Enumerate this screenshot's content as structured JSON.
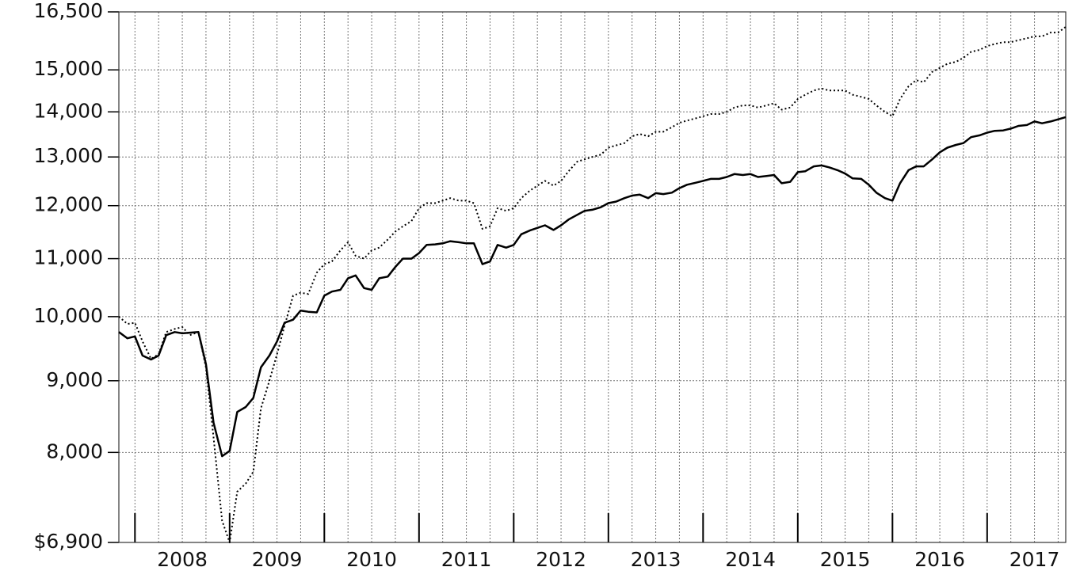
{
  "chart_data": {
    "type": "line",
    "log_y": true,
    "grid": true,
    "xlim": [
      2007.83,
      2017.83
    ],
    "xticks": [
      2008,
      2009,
      2010,
      2011,
      2012,
      2013,
      2014,
      2015,
      2016,
      2017
    ],
    "ylim": [
      6900,
      16500
    ],
    "yticks": [
      {
        "value": 6900,
        "label": "$6,900"
      },
      {
        "value": 8000,
        "label": "8,000"
      },
      {
        "value": 9000,
        "label": "9,000"
      },
      {
        "value": 10000,
        "label": "10,000"
      },
      {
        "value": 11000,
        "label": "11,000"
      },
      {
        "value": 12000,
        "label": "12,000"
      },
      {
        "value": 13000,
        "label": "13,000"
      },
      {
        "value": 14000,
        "label": "14,000"
      },
      {
        "value": 15000,
        "label": "15,000"
      },
      {
        "value": 16500,
        "label": "16,500"
      }
    ],
    "x": [
      2007.83,
      2007.92,
      2008,
      2008.08,
      2008.17,
      2008.25,
      2008.33,
      2008.42,
      2008.5,
      2008.58,
      2008.67,
      2008.75,
      2008.83,
      2008.92,
      2009,
      2009.08,
      2009.17,
      2009.25,
      2009.33,
      2009.42,
      2009.5,
      2009.58,
      2009.67,
      2009.75,
      2009.83,
      2009.92,
      2010,
      2010.08,
      2010.17,
      2010.25,
      2010.33,
      2010.42,
      2010.5,
      2010.58,
      2010.67,
      2010.75,
      2010.83,
      2010.92,
      2011,
      2011.08,
      2011.17,
      2011.25,
      2011.33,
      2011.42,
      2011.5,
      2011.58,
      2011.67,
      2011.75,
      2011.83,
      2011.92,
      2012,
      2012.08,
      2012.17,
      2012.25,
      2012.33,
      2012.42,
      2012.5,
      2012.58,
      2012.67,
      2012.75,
      2012.83,
      2012.92,
      2013,
      2013.08,
      2013.17,
      2013.25,
      2013.33,
      2013.42,
      2013.5,
      2013.58,
      2013.67,
      2013.75,
      2013.83,
      2013.92,
      2014,
      2014.08,
      2014.17,
      2014.25,
      2014.33,
      2014.42,
      2014.5,
      2014.58,
      2014.67,
      2014.75,
      2014.83,
      2014.92,
      2015,
      2015.08,
      2015.17,
      2015.25,
      2015.33,
      2015.42,
      2015.5,
      2015.58,
      2015.67,
      2015.75,
      2015.83,
      2015.92,
      2016,
      2016.08,
      2016.17,
      2016.25,
      2016.33,
      2016.42,
      2016.5,
      2016.58,
      2016.67,
      2016.75,
      2016.83,
      2016.92,
      2017,
      2017.08,
      2017.17,
      2017.25,
      2017.33,
      2017.42,
      2017.5,
      2017.58,
      2017.67,
      2017.75,
      2017.83
    ],
    "series": [
      {
        "color": "#000000",
        "style": "solid",
        "values": [
          9750,
          9650,
          9680,
          9380,
          9320,
          9380,
          9700,
          9750,
          9730,
          9740,
          9750,
          9250,
          8400,
          7950,
          8020,
          8550,
          8620,
          8750,
          9200,
          9380,
          9600,
          9900,
          9950,
          10100,
          10080,
          10070,
          10350,
          10420,
          10450,
          10650,
          10700,
          10480,
          10450,
          10650,
          10680,
          10850,
          11000,
          11000,
          11100,
          11250,
          11260,
          11280,
          11320,
          11300,
          11280,
          11280,
          10900,
          10950,
          11250,
          11200,
          11250,
          11450,
          11520,
          11570,
          11620,
          11530,
          11620,
          11730,
          11820,
          11900,
          11920,
          11970,
          12050,
          12080,
          12150,
          12200,
          12220,
          12150,
          12250,
          12230,
          12260,
          12350,
          12420,
          12460,
          12500,
          12540,
          12540,
          12580,
          12640,
          12620,
          12640,
          12580,
          12600,
          12620,
          12450,
          12480,
          12680,
          12700,
          12800,
          12820,
          12780,
          12720,
          12650,
          12550,
          12540,
          12420,
          12260,
          12150,
          12100,
          12450,
          12720,
          12800,
          12800,
          12950,
          13100,
          13200,
          13260,
          13300,
          13430,
          13470,
          13530,
          13570,
          13580,
          13620,
          13680,
          13700,
          13780,
          13740,
          13780,
          13830,
          13880
        ]
      },
      {
        "color": "#000000",
        "style": "dotted",
        "values": [
          10000,
          9880,
          9900,
          9600,
          9330,
          9400,
          9750,
          9800,
          9830,
          9700,
          9750,
          9200,
          8200,
          7150,
          6900,
          7500,
          7600,
          7750,
          8600,
          9000,
          9400,
          9850,
          10350,
          10400,
          10380,
          10750,
          10900,
          10950,
          11150,
          11300,
          11050,
          11000,
          11150,
          11200,
          11350,
          11500,
          11600,
          11700,
          11950,
          12050,
          12050,
          12100,
          12150,
          12100,
          12100,
          12050,
          11550,
          11600,
          11950,
          11900,
          11950,
          12150,
          12300,
          12400,
          12500,
          12400,
          12500,
          12700,
          12900,
          12950,
          13000,
          13050,
          13200,
          13250,
          13300,
          13450,
          13500,
          13450,
          13550,
          13550,
          13650,
          13750,
          13800,
          13850,
          13900,
          13950,
          13950,
          14000,
          14100,
          14150,
          14150,
          14100,
          14150,
          14200,
          14050,
          14100,
          14300,
          14400,
          14500,
          14550,
          14500,
          14500,
          14500,
          14400,
          14350,
          14300,
          14150,
          14000,
          13900,
          14300,
          14600,
          14750,
          14700,
          14950,
          15050,
          15150,
          15200,
          15300,
          15450,
          15500,
          15600,
          15650,
          15700,
          15700,
          15750,
          15800,
          15850,
          15850,
          15950,
          15950,
          16100
        ]
      }
    ]
  }
}
